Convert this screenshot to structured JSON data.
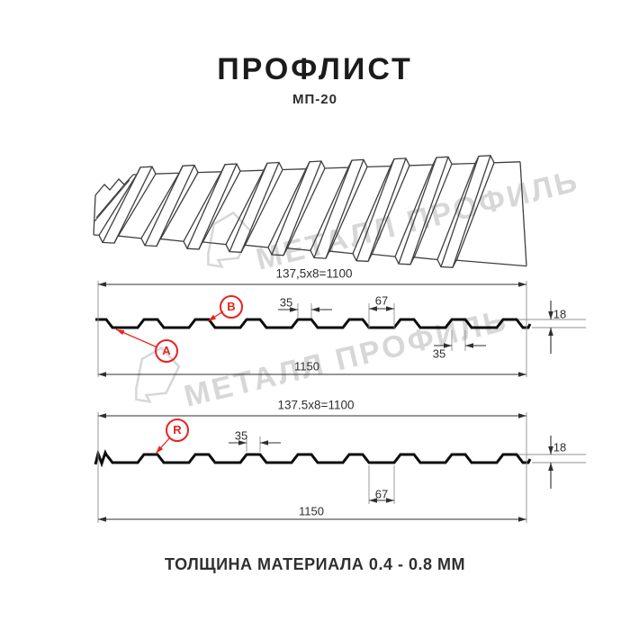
{
  "title": "ПРОФЛИСТ",
  "subtitle": "МП-20",
  "footer": "ТОЛЩИНА МАТЕРИАЛА 0.4 - 0.8 ММ",
  "watermark": {
    "brand": "МЕТАЛЛ ПРОФИЛЬ"
  },
  "colors": {
    "accent_red": "#e8231f",
    "profile_line": "#0d0d0d",
    "dim_line": "#2f2f2f",
    "ext_line": "#909090",
    "watermark": "#d7d7d7"
  },
  "profile_top": {
    "marker_a": "A",
    "marker_b": "B",
    "dim_pitch_formula": "137,5x8=1100",
    "dim_rib_top": "35",
    "dim_valley": "67",
    "dim_height": "18",
    "dim_rib_bottom": "35",
    "dim_overall": "1150"
  },
  "profile_bottom": {
    "marker_r": "R",
    "dim_pitch_formula": "137.5x8=1100",
    "dim_rib_top": "35",
    "dim_valley": "67",
    "dim_height": "18",
    "dim_overall": "1150"
  }
}
